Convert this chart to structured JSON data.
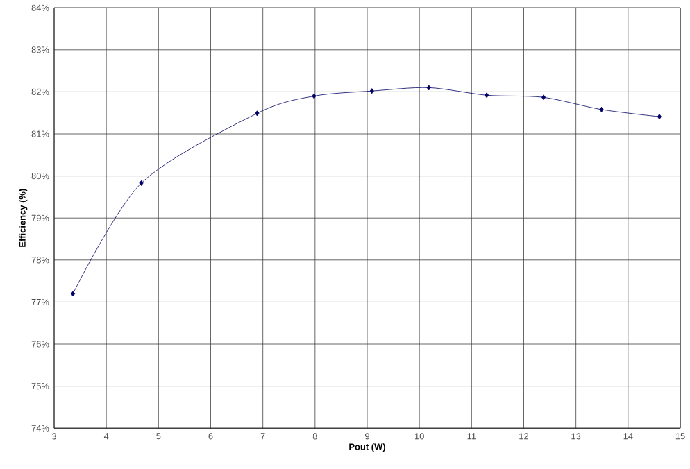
{
  "chart_data": {
    "type": "line",
    "xlabel": "Pout (W)",
    "ylabel": "Efficiency (%)",
    "x": [
      3.36,
      4.67,
      6.89,
      7.98,
      9.09,
      10.18,
      11.29,
      12.38,
      13.49,
      14.6
    ],
    "series": [
      {
        "color": "#000066",
        "values": [
          77.2,
          79.83,
          81.49,
          81.9,
          82.02,
          82.1,
          81.92,
          81.87,
          81.58,
          81.41
        ]
      }
    ],
    "xlim": [
      3,
      15
    ],
    "xticks": [
      3,
      4,
      5,
      6,
      7,
      8,
      9,
      10,
      11,
      12,
      13,
      14,
      15
    ],
    "ylim": [
      74,
      84
    ],
    "yticks": [
      {
        "value": 74,
        "label": "74%"
      },
      {
        "value": 75,
        "label": "75%"
      },
      {
        "value": 76,
        "label": "76%"
      },
      {
        "value": 77,
        "label": "77%"
      },
      {
        "value": 78,
        "label": "78%"
      },
      {
        "value": 79,
        "label": "79%"
      },
      {
        "value": 80,
        "label": "80%"
      },
      {
        "value": 81,
        "label": "81%"
      },
      {
        "value": 82,
        "label": "82%"
      },
      {
        "value": 83,
        "label": "83%"
      },
      {
        "value": 84,
        "label": "84%"
      }
    ],
    "grid": true,
    "marker": "diamond",
    "line_style": "solid"
  }
}
